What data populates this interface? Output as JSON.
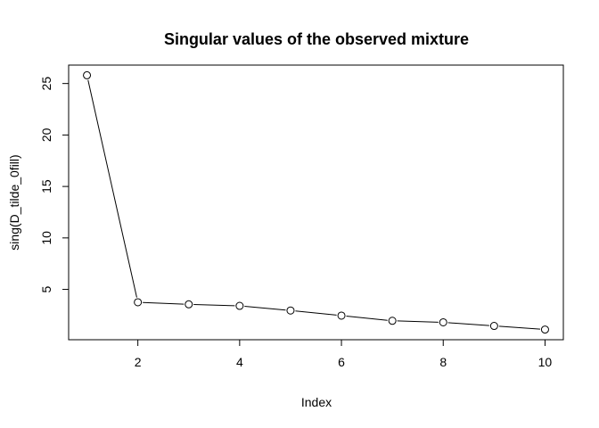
{
  "chart_data": {
    "type": "line",
    "title": "Singular values of the observed mixture",
    "xlabel": "Index",
    "ylabel": "sing(D_tilde_0fill)",
    "x": [
      1,
      2,
      3,
      4,
      5,
      6,
      7,
      8,
      9,
      10
    ],
    "series": [
      {
        "values": [
          25.8,
          3.75,
          3.55,
          3.4,
          2.95,
          2.45,
          1.95,
          1.8,
          1.45,
          1.1
        ]
      }
    ],
    "xlim": [
      0.64,
      10.36
    ],
    "ylim": [
      0.11,
      26.79
    ],
    "xticks": [
      2,
      4,
      6,
      8,
      10
    ],
    "yticks": [
      5,
      10,
      15,
      20,
      25
    ],
    "xtick_labels": [
      "2",
      "4",
      "6",
      "8",
      "10"
    ],
    "ytick_labels": [
      "5",
      "10",
      "15",
      "20",
      "25"
    ],
    "grid": false,
    "legend": "none",
    "markers": "open-circle",
    "line_color": "#000000"
  }
}
